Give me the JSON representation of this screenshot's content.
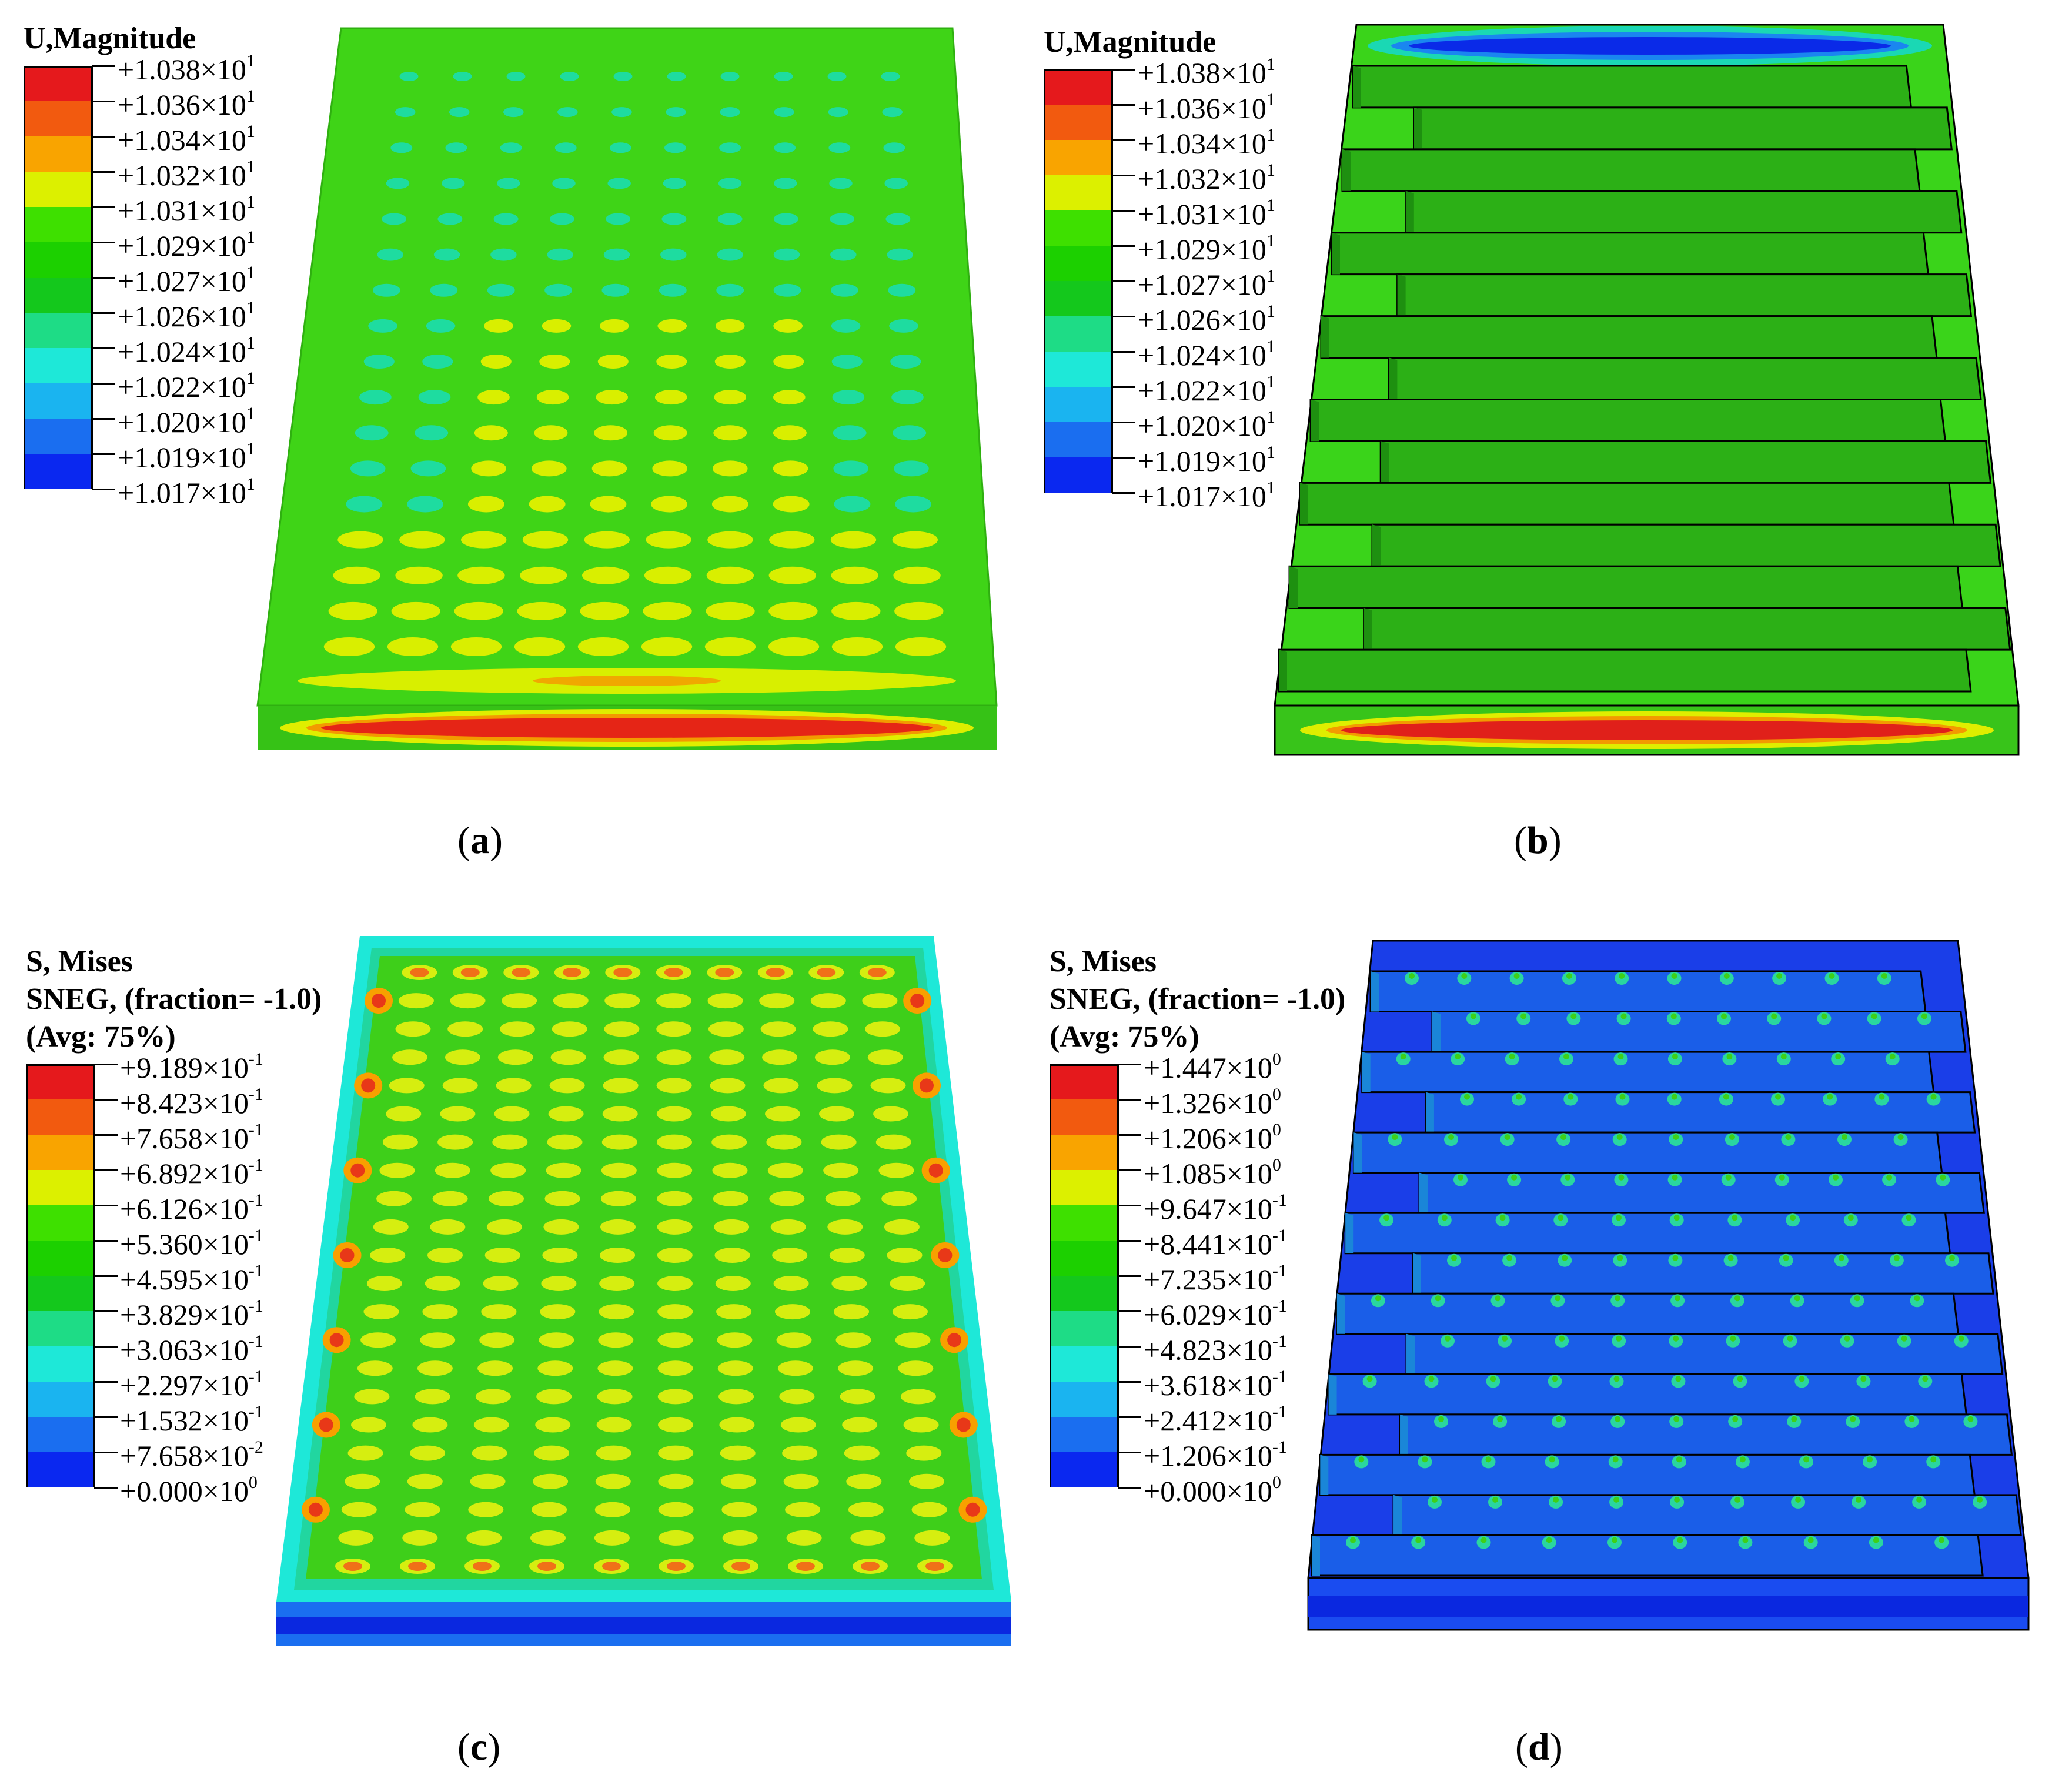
{
  "panels": [
    {
      "id": "a",
      "caption_letter": "a",
      "legend": {
        "titles": [
          "U,Magnitude"
        ],
        "labels": [
          [
            "+1.038×10",
            "1"
          ],
          [
            "+1.036×10",
            "1"
          ],
          [
            "+1.034×10",
            "1"
          ],
          [
            "+1.032×10",
            "1"
          ],
          [
            "+1.031×10",
            "1"
          ],
          [
            "+1.029×10",
            "1"
          ],
          [
            "+1.027×10",
            "1"
          ],
          [
            "+1.026×10",
            "1"
          ],
          [
            "+1.024×10",
            "1"
          ],
          [
            "+1.022×10",
            "1"
          ],
          [
            "+1.020×10",
            "1"
          ],
          [
            "+1.019×10",
            "1"
          ],
          [
            "+1.017×10",
            "1"
          ]
        ]
      }
    },
    {
      "id": "b",
      "caption_letter": "b",
      "legend": {
        "titles": [
          "U,Magnitude"
        ],
        "labels": [
          [
            "+1.038×10",
            "1"
          ],
          [
            "+1.036×10",
            "1"
          ],
          [
            "+1.034×10",
            "1"
          ],
          [
            "+1.032×10",
            "1"
          ],
          [
            "+1.031×10",
            "1"
          ],
          [
            "+1.029×10",
            "1"
          ],
          [
            "+1.027×10",
            "1"
          ],
          [
            "+1.026×10",
            "1"
          ],
          [
            "+1.024×10",
            "1"
          ],
          [
            "+1.022×10",
            "1"
          ],
          [
            "+1.020×10",
            "1"
          ],
          [
            "+1.019×10",
            "1"
          ],
          [
            "+1.017×10",
            "1"
          ]
        ]
      }
    },
    {
      "id": "c",
      "caption_letter": "c",
      "legend": {
        "titles": [
          "S, Mises",
          "SNEG, (fraction= -1.0)",
          "(Avg: 75%)"
        ],
        "labels": [
          [
            "+9.189×10",
            "-1"
          ],
          [
            "+8.423×10",
            "-1"
          ],
          [
            "+7.658×10",
            "-1"
          ],
          [
            "+6.892×10",
            "-1"
          ],
          [
            "+6.126×10",
            "-1"
          ],
          [
            "+5.360×10",
            "-1"
          ],
          [
            "+4.595×10",
            "-1"
          ],
          [
            "+3.829×10",
            "-1"
          ],
          [
            "+3.063×10",
            "-1"
          ],
          [
            "+2.297×10",
            "-1"
          ],
          [
            "+1.532×10",
            "-1"
          ],
          [
            "+7.658×10",
            "-2"
          ],
          [
            "+0.000×10",
            "0"
          ]
        ]
      }
    },
    {
      "id": "d",
      "caption_letter": "d",
      "legend": {
        "titles": [
          "S, Mises",
          "SNEG, (fraction= -1.0)",
          "(Avg: 75%)"
        ],
        "labels": [
          [
            "+1.447×10",
            "0"
          ],
          [
            "+1.326×10",
            "0"
          ],
          [
            "+1.206×10",
            "0"
          ],
          [
            "+1.085×10",
            "0"
          ],
          [
            "+9.647×10",
            "-1"
          ],
          [
            "+8.441×10",
            "-1"
          ],
          [
            "+7.235×10",
            "-1"
          ],
          [
            "+6.029×10",
            "-1"
          ],
          [
            "+4.823×10",
            "-1"
          ],
          [
            "+3.618×10",
            "-1"
          ],
          [
            "+2.412×10",
            "-1"
          ],
          [
            "+1.206×10",
            "-1"
          ],
          [
            "+0.000×10",
            "0"
          ]
        ]
      }
    }
  ],
  "contour_colors": [
    "#e5191c",
    "#f25a0f",
    "#f9a400",
    "#dcf000",
    "#3ee000",
    "#1cd000",
    "#14c81c",
    "#1edc86",
    "#1ee8d8",
    "#1ab4f0",
    "#1a6ef0",
    "#0a28f0"
  ]
}
